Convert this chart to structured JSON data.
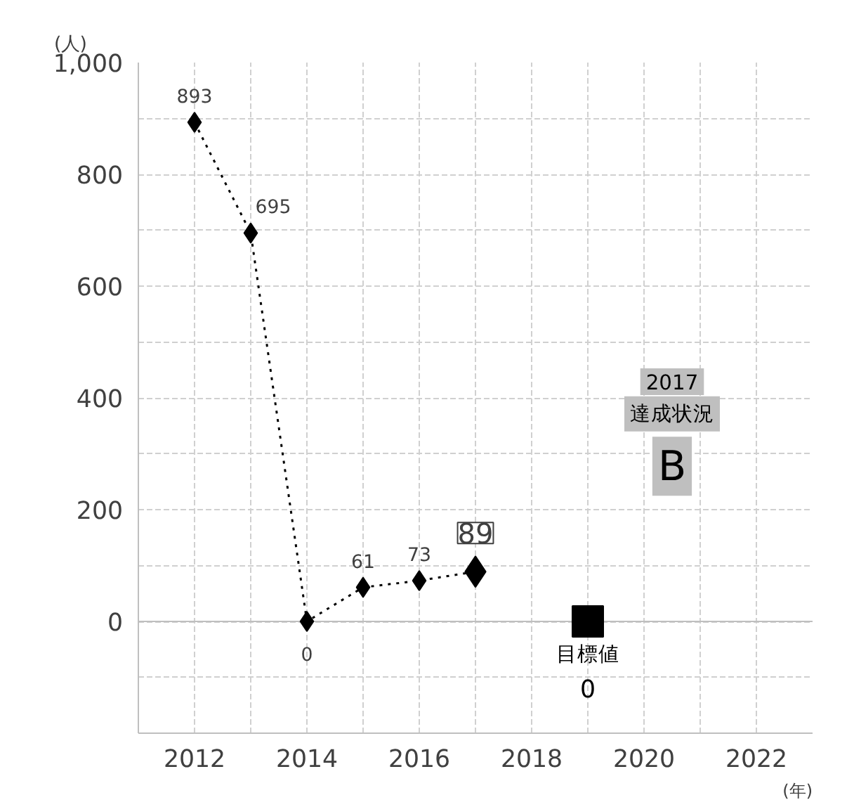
{
  "chart_data": {
    "type": "line",
    "xlabel": "(年)",
    "ylabel": "(人)",
    "xlim": [
      2011,
      2023
    ],
    "xticks": [
      {
        "value": 2011,
        "label": null
      },
      2012,
      {
        "value": 2013,
        "label": null
      },
      2014,
      {
        "value": 2015,
        "label": null
      },
      2016,
      {
        "value": 2017,
        "label": null
      },
      2018,
      {
        "value": 2019,
        "label": null
      },
      2020,
      {
        "value": 2021,
        "label": null
      },
      2022
    ],
    "ylim": [
      -200,
      1000
    ],
    "yticks": [
      {
        "value": -200,
        "label": null
      },
      {
        "value": -100,
        "label": null
      },
      0,
      {
        "value": 100,
        "label": null
      },
      200,
      {
        "value": 300,
        "label": null
      },
      400,
      {
        "value": 500,
        "label": null
      },
      600,
      {
        "value": 700,
        "label": null
      },
      800,
      {
        "value": 900,
        "label": null
      },
      {
        "value": 1000,
        "label": "1,000"
      }
    ],
    "grid": true,
    "series": [
      {
        "type": "line",
        "color": "#000000",
        "x": [
          2012,
          2013,
          2014,
          2015,
          2016,
          2017
        ],
        "values": [
          893,
          695,
          0,
          61,
          73,
          89
        ],
        "marker": "diamond",
        "line_style": "dotted",
        "data_labels": true
      },
      {
        "type": "scatter",
        "name": "目標値",
        "color": "#000000",
        "x": [
          2019
        ],
        "values": [
          0
        ],
        "marker": "square",
        "data_labels": true
      }
    ],
    "annotations": [
      "2017",
      "達成状況",
      "B"
    ]
  }
}
